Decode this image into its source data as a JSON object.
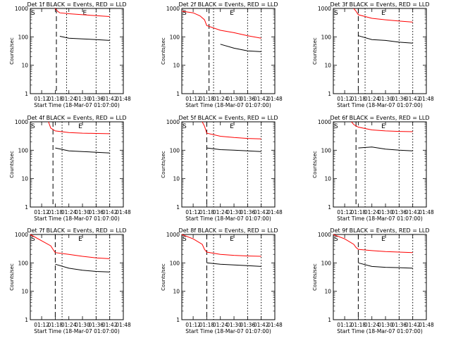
{
  "x_tick_labels": [
    "01:12",
    "01:18",
    "01:24",
    "01:30",
    "01:36",
    "01:42",
    "01:48"
  ],
  "y_tick_labels": [
    "1",
    "10",
    "100",
    "1000"
  ],
  "xlabel": "Start Time (18-Mar-07 01:07:00)",
  "ylabel": "Counts/sec",
  "marker_s": "S",
  "marker_e": "E",
  "colors": {
    "events": "#000000",
    "lld": "#ff0000"
  },
  "chart_data": [
    {
      "type": "line",
      "title": "Det 1f BLACK = Events, RED = LLD",
      "x": [
        "01:18",
        "01:19",
        "01:20",
        "01:24",
        "01:30",
        "01:36",
        "01:42"
      ],
      "series": [
        {
          "values": [
            1000,
            800,
            700,
            650,
            600,
            560,
            520
          ]
        },
        {
          "values": [
            null,
            null,
            105,
            90,
            85,
            80,
            75
          ]
        }
      ],
      "ylim": [
        1,
        1000
      ],
      "xlim": [
        "01:07",
        "01:48"
      ],
      "dashed_at": "01:18:30",
      "dotted_at": [
        "01:23",
        "01:36",
        "01:42"
      ],
      "log_y": true
    },
    {
      "type": "line",
      "title": "Det 2f BLACK = Events, RED = LLD",
      "x": [
        "01:07",
        "01:12",
        "01:15",
        "01:17",
        "01:18",
        "01:24",
        "01:30",
        "01:36",
        "01:42"
      ],
      "series": [
        {
          "values": [
            800,
            700,
            550,
            400,
            250,
            170,
            140,
            110,
            90
          ]
        },
        {
          "values": [
            null,
            null,
            null,
            null,
            null,
            55,
            40,
            32,
            30
          ]
        }
      ],
      "ylim": [
        1,
        1000
      ],
      "xlim": [
        "01:07",
        "01:48"
      ],
      "dashed_at": "01:19",
      "dotted_at": [
        "01:21",
        "01:36",
        "01:42"
      ],
      "log_y": true
    },
    {
      "type": "line",
      "title": "Det 3f BLACK = Events, RED = LLD",
      "x": [
        "01:16",
        "01:17",
        "01:18",
        "01:24",
        "01:30",
        "01:36",
        "01:42"
      ],
      "series": [
        {
          "values": [
            1000,
            800,
            600,
            450,
            400,
            360,
            330
          ]
        },
        {
          "values": [
            null,
            null,
            110,
            80,
            75,
            65,
            60
          ]
        }
      ],
      "ylim": [
        1,
        1000
      ],
      "xlim": [
        "01:07",
        "01:48"
      ],
      "dashed_at": "01:18",
      "dotted_at": [
        "01:21",
        "01:36",
        "01:42"
      ],
      "log_y": true
    },
    {
      "type": "line",
      "title": "Det 4f BLACK = Events, RED = LLD",
      "x": [
        "01:15",
        "01:16",
        "01:18",
        "01:24",
        "01:30",
        "01:36",
        "01:42"
      ],
      "series": [
        {
          "values": [
            1000,
            600,
            480,
            420,
            400,
            390,
            380
          ]
        },
        {
          "values": [
            null,
            null,
            120,
            95,
            90,
            85,
            80
          ]
        }
      ],
      "ylim": [
        1,
        1000
      ],
      "xlim": [
        "01:07",
        "01:48"
      ],
      "dashed_at": "01:17",
      "dotted_at": [
        "01:21",
        "01:36",
        "01:42"
      ],
      "log_y": true
    },
    {
      "type": "line",
      "title": "Det 5f BLACK = Events, RED = LLD",
      "x": [
        "01:16",
        "01:17",
        "01:18",
        "01:24",
        "01:30",
        "01:36",
        "01:42"
      ],
      "series": [
        {
          "values": [
            1000,
            700,
            400,
            310,
            280,
            260,
            250
          ]
        },
        {
          "values": [
            null,
            null,
            120,
            105,
            100,
            95,
            90
          ]
        }
      ],
      "ylim": [
        1,
        1000
      ],
      "xlim": [
        "01:07",
        "01:48"
      ],
      "dashed_at": "01:18",
      "dotted_at": [
        "01:21",
        "01:36",
        "01:42"
      ],
      "log_y": true
    },
    {
      "type": "line",
      "title": "Det 6f BLACK = Events, RED = LLD",
      "x": [
        "01:15",
        "01:16",
        "01:18",
        "01:24",
        "01:30",
        "01:36",
        "01:42"
      ],
      "series": [
        {
          "values": [
            1000,
            800,
            650,
            520,
            480,
            460,
            450
          ]
        },
        {
          "values": [
            null,
            null,
            120,
            130,
            110,
            100,
            95
          ]
        }
      ],
      "ylim": [
        1,
        1000
      ],
      "xlim": [
        "01:07",
        "01:48"
      ],
      "dashed_at": "01:17",
      "dotted_at": [
        "01:21",
        "01:36",
        "01:42"
      ],
      "log_y": true
    },
    {
      "type": "line",
      "title": "Det 7f BLACK = Events, RED = LLD",
      "x": [
        "01:07",
        "01:12",
        "01:16",
        "01:17",
        "01:18",
        "01:24",
        "01:30",
        "01:36",
        "01:42"
      ],
      "series": [
        {
          "values": [
            1000,
            600,
            400,
            300,
            230,
            200,
            170,
            150,
            140
          ]
        },
        {
          "values": [
            null,
            null,
            null,
            null,
            90,
            65,
            55,
            50,
            48
          ]
        }
      ],
      "ylim": [
        1,
        1000
      ],
      "xlim": [
        "01:07",
        "01:48"
      ],
      "dashed_at": "01:18",
      "dotted_at": [
        "01:21",
        "01:36",
        "01:42"
      ],
      "log_y": true
    },
    {
      "type": "line",
      "title": "Det 8f BLACK = Events, RED = LLD",
      "x": [
        "01:07",
        "01:12",
        "01:16",
        "01:17",
        "01:18",
        "01:24",
        "01:30",
        "01:36",
        "01:42"
      ],
      "series": [
        {
          "values": [
            1000,
            700,
            450,
            300,
            240,
            200,
            185,
            175,
            170
          ]
        },
        {
          "values": [
            null,
            null,
            null,
            null,
            100,
            90,
            85,
            80,
            75
          ]
        }
      ],
      "ylim": [
        1,
        1000
      ],
      "xlim": [
        "01:07",
        "01:48"
      ],
      "dashed_at": "01:18",
      "dotted_at": [
        "01:21",
        "01:36",
        "01:42"
      ],
      "log_y": true
    },
    {
      "type": "line",
      "title": "Det 9f BLACK = Events, RED = LLD",
      "x": [
        "01:07",
        "01:12",
        "01:16",
        "01:17",
        "01:18",
        "01:24",
        "01:30",
        "01:36",
        "01:42"
      ],
      "series": [
        {
          "values": [
            1000,
            700,
            450,
            350,
            300,
            270,
            250,
            240,
            230
          ]
        },
        {
          "values": [
            null,
            null,
            null,
            null,
            100,
            75,
            70,
            68,
            65
          ]
        }
      ],
      "ylim": [
        1,
        1000
      ],
      "xlim": [
        "01:07",
        "01:48"
      ],
      "dashed_at": "01:18",
      "dotted_at": [
        "01:21",
        "01:36",
        "01:42"
      ],
      "log_y": true
    }
  ]
}
